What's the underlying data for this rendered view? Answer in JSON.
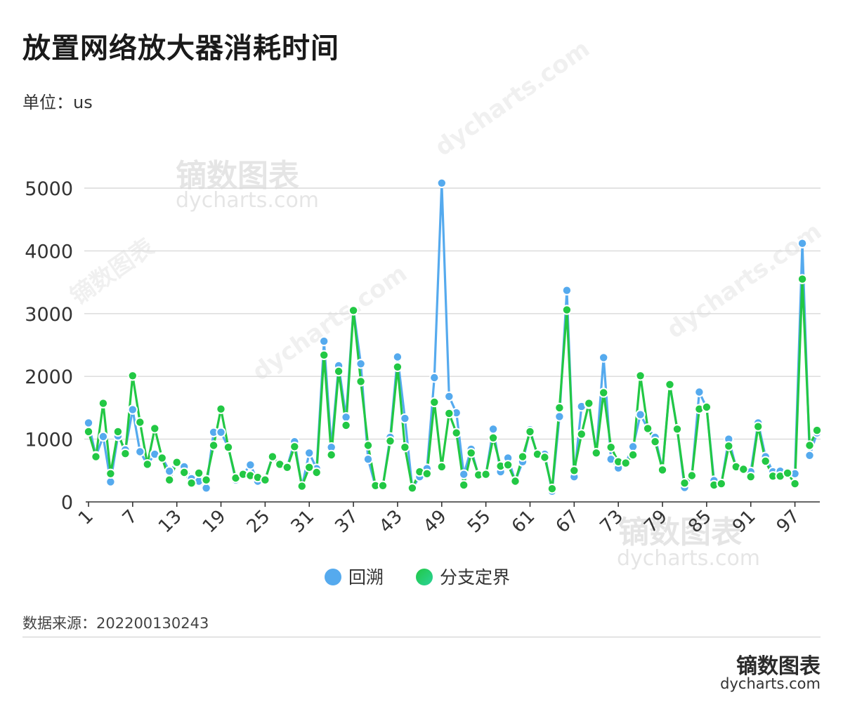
{
  "title": "放置网络放大器消耗时间",
  "unit_label": "单位：us",
  "source_label": "数据来源：202200130243",
  "brand": {
    "name": "镝数图表",
    "url": "dycharts.com"
  },
  "watermark": {
    "name": "镝数图表",
    "url": "dycharts.com"
  },
  "colors": {
    "backtracking": "#55aaee",
    "branch_bound": "#22c844",
    "grid": "#d9d9d9",
    "axis": "#333333"
  },
  "chart_data": {
    "type": "line",
    "title": "放置网络放大器消耗时间",
    "ylabel": "单位：us",
    "xlabel": "",
    "ylim": [
      0,
      5000
    ],
    "yticks": [
      0,
      1000,
      2000,
      3000,
      4000,
      5000
    ],
    "xlim": [
      1,
      100
    ],
    "xticks": [
      1,
      7,
      13,
      19,
      25,
      31,
      37,
      43,
      49,
      55,
      61,
      67,
      73,
      79,
      85,
      91,
      97
    ],
    "grid": true,
    "legend_position": "bottom",
    "x": [
      1,
      2,
      3,
      4,
      5,
      6,
      7,
      8,
      9,
      10,
      11,
      12,
      13,
      14,
      15,
      16,
      17,
      18,
      19,
      20,
      21,
      22,
      23,
      24,
      25,
      26,
      27,
      28,
      29,
      30,
      31,
      32,
      33,
      34,
      35,
      36,
      37,
      38,
      39,
      40,
      41,
      42,
      43,
      44,
      45,
      46,
      47,
      48,
      49,
      50,
      51,
      52,
      53,
      54,
      55,
      56,
      57,
      58,
      59,
      60,
      61,
      62,
      63,
      64,
      65,
      66,
      67,
      68,
      69,
      70,
      71,
      72,
      73,
      74,
      75,
      76,
      77,
      78,
      79,
      80,
      81,
      82,
      83,
      84,
      85,
      86,
      87,
      88,
      89,
      90,
      91,
      92,
      93,
      94,
      95,
      96,
      97,
      98,
      99,
      100
    ],
    "series": [
      {
        "name": "回溯",
        "values": [
          1260,
          730,
          1040,
          320,
          1050,
          830,
          1470,
          800,
          600,
          760,
          710,
          490,
          620,
          560,
          370,
          330,
          220,
          1110,
          1110,
          870,
          350,
          440,
          590,
          330,
          360,
          720,
          600,
          560,
          960,
          240,
          780,
          530,
          2560,
          870,
          2170,
          1350,
          3070,
          2200,
          680,
          250,
          250,
          1030,
          2310,
          1330,
          220,
          400,
          530,
          1980,
          5080,
          1680,
          1420,
          440,
          840,
          420,
          430,
          1160,
          480,
          700,
          330,
          640,
          1150,
          740,
          760,
          170,
          1360,
          3370,
          400,
          1520,
          1560,
          780,
          2300,
          680,
          540,
          620,
          880,
          1390,
          1170,
          1030,
          520,
          1860,
          1160,
          230,
          420,
          1750,
          1500,
          340,
          280,
          1000,
          550,
          500,
          480,
          1260,
          720,
          480,
          490,
          470,
          450,
          4120,
          740,
          1100
        ]
      },
      {
        "name": "分支定界",
        "values": [
          1120,
          720,
          1570,
          450,
          1120,
          770,
          2010,
          1270,
          600,
          1170,
          700,
          350,
          630,
          470,
          300,
          460,
          350,
          900,
          1480,
          870,
          380,
          440,
          420,
          390,
          350,
          720,
          600,
          550,
          880,
          250,
          550,
          470,
          2340,
          750,
          2080,
          1220,
          3050,
          1920,
          900,
          260,
          260,
          970,
          2150,
          870,
          220,
          480,
          450,
          1590,
          560,
          1410,
          1100,
          270,
          780,
          430,
          440,
          1020,
          570,
          590,
          330,
          720,
          1120,
          760,
          710,
          210,
          1500,
          3060,
          500,
          1080,
          1570,
          780,
          1740,
          870,
          640,
          620,
          750,
          2010,
          1170,
          960,
          510,
          1870,
          1160,
          300,
          420,
          1480,
          1510,
          270,
          290,
          890,
          560,
          520,
          400,
          1200,
          650,
          410,
          410,
          460,
          290,
          3550,
          900,
          1140
        ]
      }
    ]
  }
}
